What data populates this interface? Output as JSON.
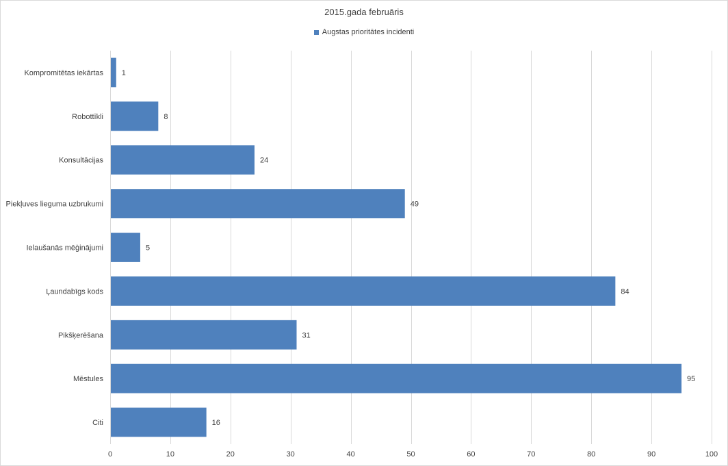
{
  "chart_data": {
    "type": "bar",
    "orientation": "horizontal",
    "title": "2015.gada februāris",
    "categories": [
      "Kompromitētas iekārtas",
      "Robottīkli",
      "Konsultācijas",
      "Piekļuves lieguma uzbrukumi",
      "Ielaušanās mēģinājumi",
      "Ļaundabīgs kods",
      "Pikšķerēšana",
      "Mēstules",
      "Citi"
    ],
    "series": [
      {
        "name": "Augstas prioritātes incidenti",
        "values": [
          1,
          8,
          24,
          49,
          5,
          84,
          31,
          95,
          16
        ],
        "color": "#4f81bd"
      }
    ],
    "xlim": [
      0,
      100
    ],
    "xticks": [
      0,
      10,
      20,
      30,
      40,
      50,
      60,
      70,
      80,
      90,
      100
    ],
    "data_labels": true,
    "grid": "vertical",
    "legend": "top-center"
  },
  "colors": {
    "bar": "#4f81bd",
    "grid": "#d9d9d9",
    "text": "#404040"
  }
}
